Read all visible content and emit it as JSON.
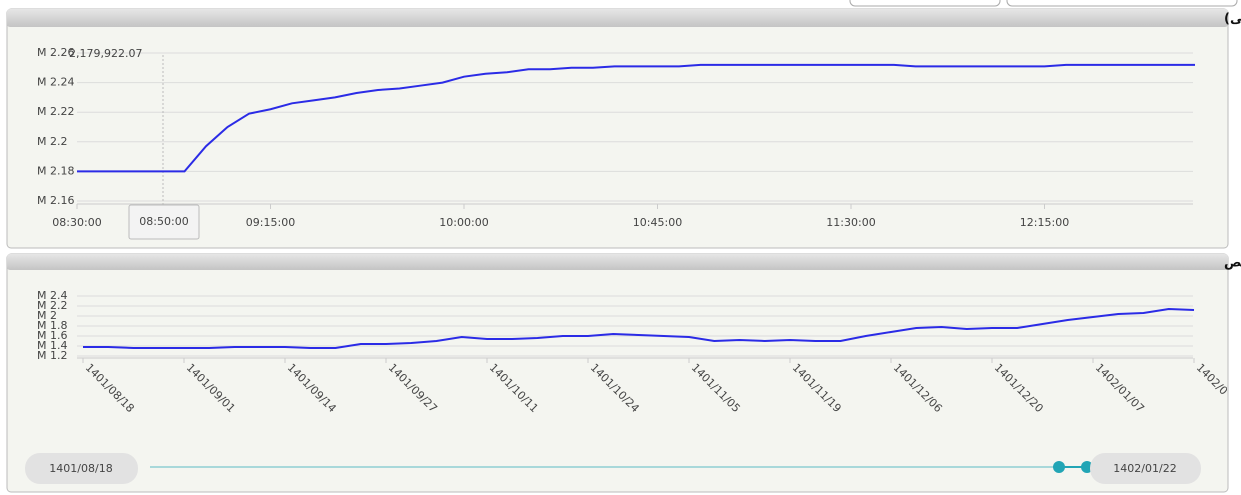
{
  "chart_data": [
    {
      "type": "line",
      "title": "شاخص کل (آخرین روز معاملاتی)",
      "x": [
        "08:30:00",
        "08:35:00",
        "08:40:00",
        "08:45:00",
        "08:50:00",
        "08:55:00",
        "09:00:00",
        "09:05:00",
        "09:10:00",
        "09:15:00",
        "09:20:00",
        "09:25:00",
        "09:30:00",
        "09:35:00",
        "09:40:00",
        "09:45:00",
        "09:50:00",
        "09:55:00",
        "10:00:00",
        "10:05:00",
        "10:10:00",
        "10:15:00",
        "10:20:00",
        "10:25:00",
        "10:30:00",
        "10:35:00",
        "10:40:00",
        "10:45:00",
        "10:50:00",
        "10:55:00",
        "11:00:00",
        "11:05:00",
        "11:10:00",
        "11:15:00",
        "11:20:00",
        "11:25:00",
        "11:30:00",
        "11:35:00",
        "11:40:00",
        "11:45:00",
        "11:50:00",
        "11:55:00",
        "12:00:00",
        "12:05:00",
        "12:10:00",
        "12:15:00",
        "12:20:00",
        "12:25:00",
        "12:30:00",
        "12:35:00",
        "12:40:00",
        "12:45:00",
        "12:50:00"
      ],
      "series": [
        {
          "color": "#2b2be6",
          "values": [
            2.18,
            2.18,
            2.18,
            2.18,
            2.18,
            2.18,
            2.197,
            2.21,
            2.219,
            2.222,
            2.226,
            2.228,
            2.23,
            2.233,
            2.235,
            2.236,
            2.238,
            2.24,
            2.244,
            2.246,
            2.247,
            2.249,
            2.249,
            2.25,
            2.25,
            2.251,
            2.251,
            2.251,
            2.251,
            2.252,
            2.252,
            2.252,
            2.252,
            2.252,
            2.252,
            2.252,
            2.252,
            2.252,
            2.252,
            2.251,
            2.251,
            2.251,
            2.251,
            2.251,
            2.251,
            2.251,
            2.252,
            2.252,
            2.252,
            2.252,
            2.252,
            2.252,
            2.252
          ]
        }
      ],
      "xticks": [
        "08:30:00",
        "09:15:00",
        "10:00:00",
        "10:45:00",
        "11:30:00",
        "12:15:00"
      ],
      "ylim": [
        2.16,
        2.26
      ],
      "yticks": [
        {
          "value": 2.16,
          "label": "M 2.16"
        },
        {
          "value": 2.18,
          "label": "M 2.18"
        },
        {
          "value": 2.2,
          "label": "M 2.2"
        },
        {
          "value": 2.22,
          "label": "M 2.22"
        },
        {
          "value": 2.24,
          "label": "M 2.24"
        },
        {
          "value": 2.26,
          "label": "M 2.26"
        }
      ],
      "grid": true,
      "annotations": [
        {
          "x": "08:50:00",
          "label": "2,179,922.07"
        }
      ]
    },
    {
      "type": "line",
      "title": "نمودار شاخص",
      "categories": [
        "1401/08/18",
        null,
        null,
        null,
        "1401/09/01",
        null,
        null,
        null,
        "1401/09/14",
        null,
        null,
        null,
        "1401/09/27",
        null,
        null,
        null,
        "1401/10/11",
        null,
        null,
        null,
        "1401/10/24",
        null,
        null,
        null,
        "1401/11/05",
        null,
        null,
        null,
        "1401/11/19",
        null,
        null,
        null,
        "1401/12/06",
        null,
        null,
        null,
        "1401/12/20",
        null,
        null,
        null,
        "1402/01/07",
        null,
        null,
        null,
        "1402/0"
      ],
      "series": [
        {
          "color": "#2b2be6",
          "values": [
            1.38,
            1.38,
            1.36,
            1.36,
            1.36,
            1.36,
            1.38,
            1.38,
            1.38,
            1.36,
            1.36,
            1.44,
            1.44,
            1.46,
            1.5,
            1.58,
            1.54,
            1.54,
            1.56,
            1.6,
            1.6,
            1.64,
            1.62,
            1.6,
            1.58,
            1.5,
            1.52,
            1.5,
            1.52,
            1.5,
            1.5,
            1.6,
            1.68,
            1.76,
            1.78,
            1.74,
            1.76,
            1.76,
            1.84,
            1.92,
            1.98,
            2.04,
            2.06,
            2.14,
            2.12
          ]
        }
      ],
      "ylim": [
        1.2,
        2.4
      ],
      "yticks": [
        {
          "value": 1.2,
          "label": "M 1.2"
        },
        {
          "value": 1.4,
          "label": "M 1.4"
        },
        {
          "value": 1.6,
          "label": "M 1.6"
        },
        {
          "value": 1.8,
          "label": "M 1.8"
        },
        {
          "value": 2,
          "label": "M 2"
        },
        {
          "value": 2.2,
          "label": "M 2.2"
        },
        {
          "value": 2.4,
          "label": "M 2.4"
        }
      ],
      "grid": true
    }
  ],
  "range_slider": {
    "from": "1401/08/18",
    "to": "1402/01/22"
  }
}
